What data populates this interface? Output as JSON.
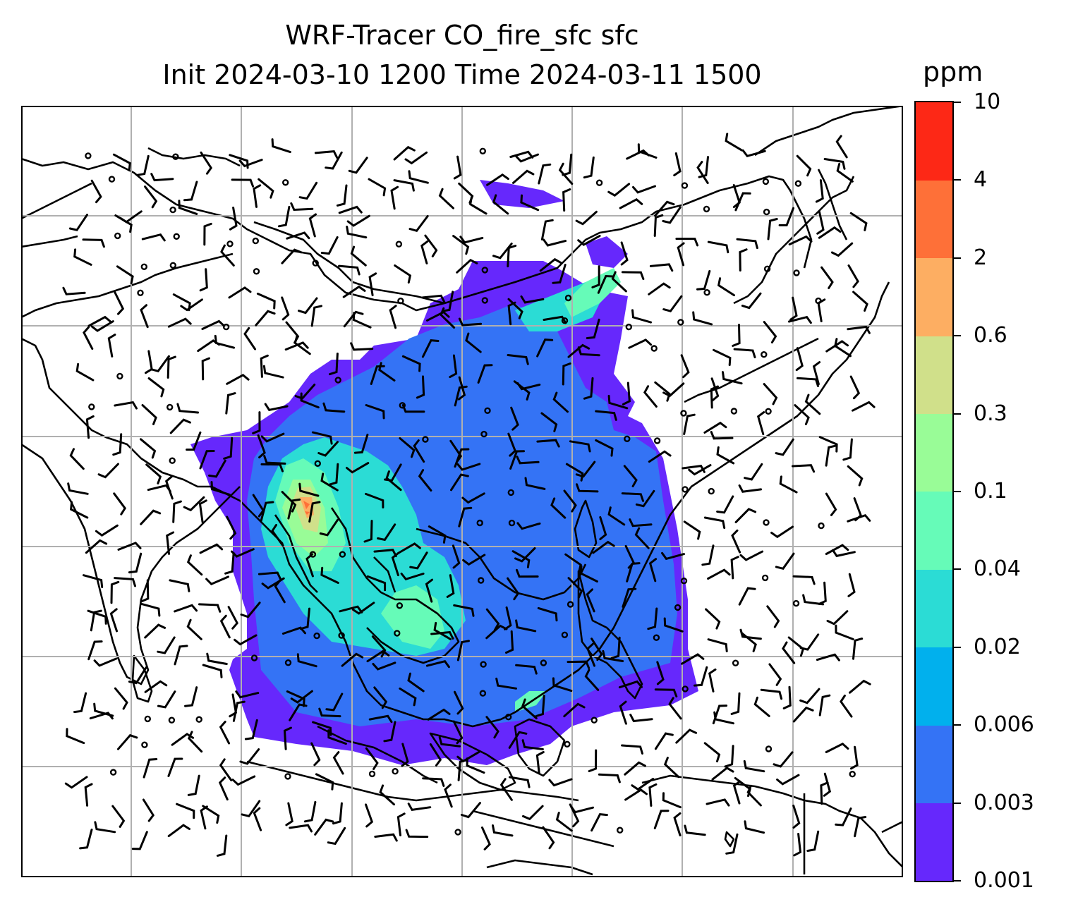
{
  "title": {
    "line1": "WRF-Tracer CO_fire_sfc sfc",
    "line2": "Init 2024-03-10 1200 Time 2024-03-11 1500"
  },
  "colorbar": {
    "label": "ppm",
    "ticks": [
      "0.001",
      "0.003",
      "0.006",
      "0.02",
      "0.04",
      "0.1",
      "0.3",
      "0.6",
      "2",
      "4",
      "10"
    ],
    "colors": [
      "#6628fc",
      "#3473f5",
      "#01b0ed",
      "#2bdcd5",
      "#66fbb8",
      "#99fc97",
      "#d0e08a",
      "#fdae62",
      "#fe7038",
      "#fd2816"
    ]
  },
  "map": {
    "grid": "on",
    "grid_color": "#b0b0b0",
    "coastline_color": "#000000",
    "plume_max_color": "#fe7038"
  }
}
